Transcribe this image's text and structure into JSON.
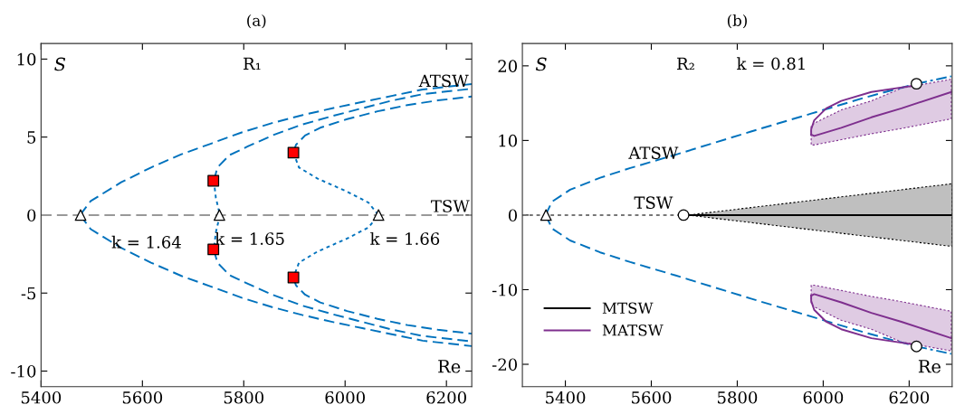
{
  "chart_data": [
    {
      "type": "line",
      "title": "(a)",
      "xlabel": "Re",
      "ylabel": "S",
      "xlim": [
        5400,
        6250
      ],
      "ylim": [
        -11,
        11
      ],
      "xticks": [
        5400,
        5600,
        5800,
        6000,
        6200
      ],
      "yticks": [
        -10,
        -5,
        0,
        5,
        10
      ],
      "grid": false,
      "legend": false,
      "annotations": [
        "R₁",
        "ATSW",
        "TSW",
        "k = 1.64",
        "k = 1.65",
        "k = 1.66"
      ],
      "series": [
        {
          "line_style": "dashed",
          "color": "#999999",
          "x": [
            5400,
            6250
          ],
          "values": [
            0,
            0
          ]
        },
        {
          "line_style": "dashed",
          "color": "#0072bd",
          "x": [
            5477,
            5498,
            5558,
            5617,
            5677,
            5737,
            5796,
            5856,
            5915,
            5975,
            6034,
            6094,
            6153,
            6250
          ],
          "values": [
            0,
            0.9,
            2.1,
            3.05,
            3.9,
            4.6,
            5.3,
            5.9,
            6.4,
            6.85,
            7.25,
            7.65,
            8.05,
            8.4
          ]
        },
        {
          "line_style": "dashed",
          "color": "#0072bd",
          "x": [
            5477,
            5498,
            5558,
            5617,
            5677,
            5737,
            5796,
            5856,
            5915,
            5975,
            6034,
            6094,
            6153,
            6250
          ],
          "values": [
            0,
            -0.9,
            -2.1,
            -3.05,
            -3.9,
            -4.6,
            -5.3,
            -5.9,
            -6.4,
            -6.85,
            -7.25,
            -7.65,
            -8.05,
            -8.4
          ]
        },
        {
          "line_style": "dashed",
          "color": "#0072bd",
          "x": [
            5741,
            5748,
            5772,
            5808,
            5856,
            5915,
            5975,
            6034,
            6094,
            6153,
            6250
          ],
          "values": [
            2.2,
            3.05,
            3.85,
            4.4,
            5.1,
            5.8,
            6.35,
            6.85,
            7.35,
            7.75,
            8.1
          ]
        },
        {
          "line_style": "dashed",
          "color": "#0072bd",
          "x": [
            5741,
            5748,
            5772,
            5808,
            5856,
            5915,
            5975,
            6034,
            6094,
            6153,
            6250
          ],
          "values": [
            -2.2,
            -3.05,
            -3.85,
            -4.4,
            -5.1,
            -5.8,
            -6.35,
            -6.85,
            -7.35,
            -7.75,
            -8.1
          ]
        },
        {
          "line_style": "dotted",
          "color": "#0072bd",
          "x": [
            5741,
            5745,
            5753,
            5745,
            5741
          ],
          "values": [
            2.2,
            1.1,
            0,
            -1.1,
            -2.2
          ]
        },
        {
          "line_style": "dashed",
          "color": "#0072bd",
          "x": [
            5898,
            5903,
            5921,
            5951,
            6004,
            6064,
            6123,
            6183,
            6250
          ],
          "values": [
            4,
            4.5,
            5.1,
            5.6,
            6.15,
            6.65,
            7.05,
            7.35,
            7.6
          ]
        },
        {
          "line_style": "dashed",
          "color": "#0072bd",
          "x": [
            5898,
            5903,
            5921,
            5951,
            6004,
            6064,
            6123,
            6183,
            6250
          ],
          "values": [
            -4,
            -4.5,
            -5.1,
            -5.6,
            -6.15,
            -6.65,
            -7.05,
            -7.35,
            -7.6
          ]
        },
        {
          "line_style": "dotted",
          "color": "#0072bd",
          "x": [
            5898,
            5909,
            5945,
            6004,
            6046,
            6066,
            6046,
            6004,
            5945,
            5909,
            5898
          ],
          "values": [
            4,
            3.05,
            2.35,
            1.5,
            0.8,
            0,
            -0.8,
            -1.5,
            -2.35,
            -3.05,
            -4
          ]
        },
        {
          "type": "scatter",
          "marker": "triangle",
          "color": "#ffffff",
          "x": [
            5478,
            5752,
            6066
          ],
          "values": [
            0,
            0,
            0
          ]
        },
        {
          "type": "scatter",
          "marker": "square",
          "color": "#ff0000",
          "x": [
            5740,
            5740,
            5898,
            5898
          ],
          "values": [
            2.2,
            -2.2,
            4,
            -4
          ]
        }
      ]
    },
    {
      "type": "line",
      "title": "(b)",
      "xlabel": "Re",
      "ylabel": "S",
      "xlim": [
        5300,
        6300
      ],
      "ylim": [
        -23,
        23
      ],
      "xticks": [
        5400,
        5600,
        5800,
        6000,
        6200
      ],
      "yticks": [
        -20,
        -10,
        0,
        10,
        20
      ],
      "grid": false,
      "legend": "bottom left",
      "annotations": [
        "R₂",
        "k = 0.81",
        "ATSW",
        "TSW"
      ],
      "series": [
        {
          "line_style": "dotted",
          "color": "#777777",
          "x": [
            5300,
            5675
          ],
          "values": [
            0,
            0
          ]
        },
        {
          "line_style": "solid",
          "name": "MTSW",
          "color": "#000000",
          "x": [
            5685,
            6300
          ],
          "values": [
            0,
            0
          ],
          "lower": [
            0,
            -4.2
          ],
          "upper": [
            0,
            4.2
          ]
        },
        {
          "line_style": "dashed",
          "color": "#0072bd",
          "x": [
            5354,
            5369,
            5411,
            5481,
            5551,
            5657,
            5832,
            5972,
            6100,
            6217
          ],
          "values": [
            0,
            1.8,
            3.4,
            5,
            6.3,
            8.1,
            11.2,
            13.6,
            15.8,
            17.6
          ]
        },
        {
          "line_style": "dashed",
          "color": "#0072bd",
          "x": [
            5354,
            5369,
            5411,
            5481,
            5551,
            5657,
            5832,
            5972,
            6100,
            6217
          ],
          "values": [
            0,
            -1.8,
            -3.4,
            -5,
            -6.3,
            -8.1,
            -11.2,
            -13.6,
            -15.8,
            -17.6
          ]
        },
        {
          "line_style": "dashdot",
          "color": "#0072bd",
          "x": [
            6217,
            6298
          ],
          "values": [
            17.6,
            18.6
          ]
        },
        {
          "line_style": "dashdot",
          "color": "#0072bd",
          "x": [
            6217,
            6298
          ],
          "values": [
            -17.6,
            -18.6
          ]
        },
        {
          "line_style": "solid",
          "name": "MATSW",
          "color": "#7e2f8e",
          "x": [
            6217,
            6112,
            6042,
            6007,
            5979,
            5972,
            5972
          ],
          "values": [
            17.4,
            16.5,
            15.3,
            14.3,
            12.7,
            11.5,
            10.8
          ]
        },
        {
          "line_style": "solid",
          "color": "#7e2f8e",
          "x": [
            5972,
            5979,
            6042,
            6112,
            6182,
            6298
          ],
          "values": [
            10.8,
            10.6,
            11.7,
            13.1,
            14.3,
            16.5
          ],
          "lower": [
            9.4,
            9.4,
            10.1,
            10.9,
            11.6,
            12.9
          ],
          "upper": [
            11.9,
            12.3,
            14.1,
            15.3,
            17,
            18.2
          ]
        },
        {
          "line_style": "solid",
          "color": "#7e2f8e",
          "x": [
            6217,
            6112,
            6042,
            6007,
            5979,
            5972,
            5972
          ],
          "values": [
            -17.4,
            -16.5,
            -15.3,
            -14.3,
            -12.7,
            -11.5,
            -10.8
          ]
        },
        {
          "line_style": "solid",
          "color": "#7e2f8e",
          "x": [
            5972,
            5979,
            6042,
            6112,
            6182,
            6298
          ],
          "values": [
            -10.8,
            -10.6,
            -11.7,
            -13.1,
            -14.3,
            -16.5
          ],
          "lower": [
            -11.9,
            -12.3,
            -14.1,
            -15.3,
            -17,
            -18.2
          ],
          "upper": [
            -9.4,
            -9.4,
            -10.1,
            -10.9,
            -11.6,
            -12.9
          ]
        },
        {
          "type": "scatter",
          "marker": "triangle",
          "color": "#ffffff",
          "x": [
            5355
          ],
          "values": [
            0
          ]
        },
        {
          "type": "scatter",
          "marker": "circle",
          "color": "#ffffff",
          "x": [
            5675,
            6217,
            6217
          ],
          "values": [
            0,
            17.6,
            -17.6
          ]
        }
      ]
    }
  ]
}
